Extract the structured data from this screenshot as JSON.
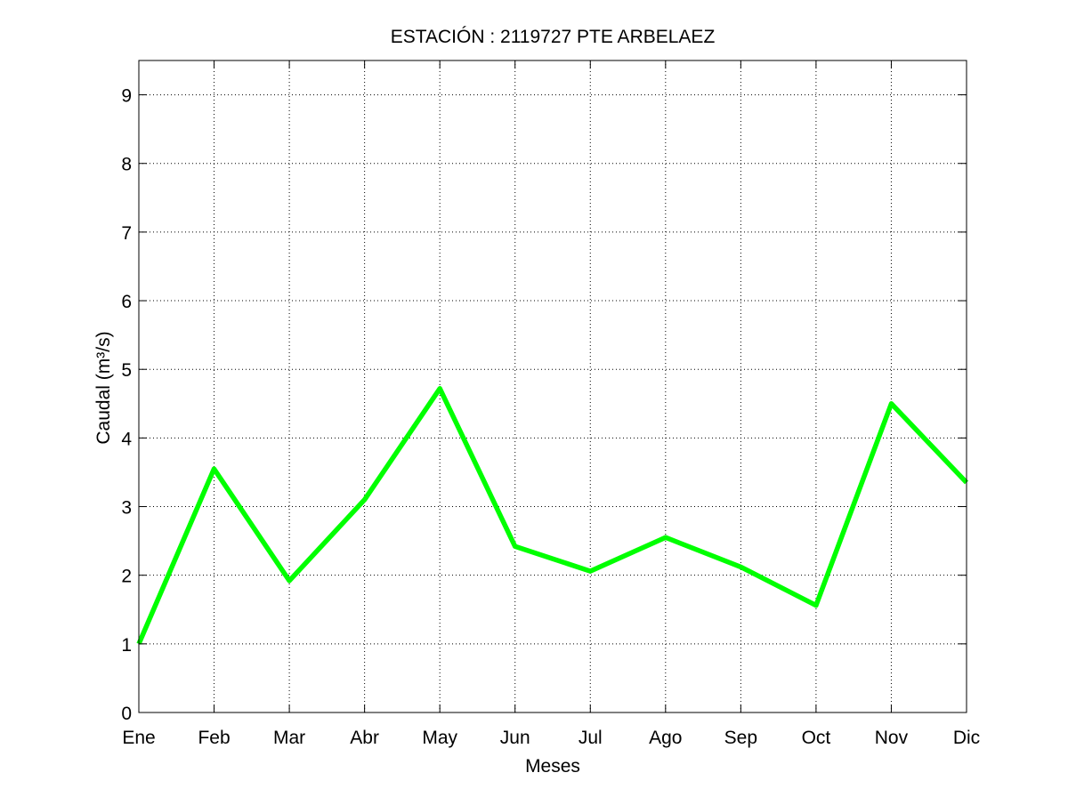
{
  "chart_data": {
    "type": "line",
    "title": "ESTACIÓN :  2119727  PTE ARBELAEZ",
    "xlabel": "Meses",
    "ylabel": "Caudal (m³/s)",
    "categories": [
      "Ene",
      "Feb",
      "Mar",
      "Abr",
      "May",
      "Jun",
      "Jul",
      "Ago",
      "Sep",
      "Oct",
      "Nov",
      "Dic"
    ],
    "ylim": [
      0,
      9.5
    ],
    "yticks": [
      "0",
      "1",
      "2",
      "3",
      "4",
      "5",
      "6",
      "7",
      "8",
      "9"
    ],
    "grid": true,
    "line_color": "#00ff00",
    "series": [
      {
        "values": [
          1.0,
          3.55,
          1.92,
          3.1,
          4.72,
          2.42,
          2.06,
          2.55,
          2.12,
          1.56,
          4.5,
          3.35
        ]
      }
    ]
  }
}
